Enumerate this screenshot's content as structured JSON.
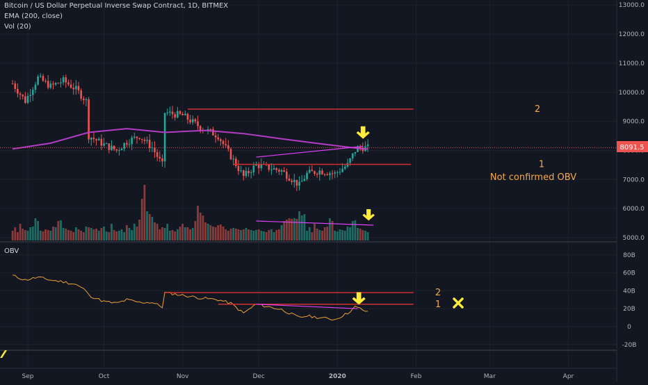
{
  "header": {
    "title": "Bitcoin / US Dollar Perpetual Inverse Swap Contract, 1D, BITMEX",
    "indicator_ema": "EMA (200, close)",
    "indicator_vol": "Vol (20)"
  },
  "obv_pane": {
    "label": "OBV"
  },
  "price_badge": "8091.5",
  "colors": {
    "background": "#131722",
    "up": "#26a69a",
    "down": "#ef5350",
    "ema": "#b33cc4",
    "level": "#d32f2f",
    "trend": "#e040fb",
    "obv": "#f0a030",
    "arrow": "#ffeb3b",
    "annotation": "#f7a94a"
  },
  "chart_data": [
    {
      "type": "candlestick",
      "title": "Bitcoin / US Dollar Perpetual Inverse Swap Contract, 1D, BITMEX",
      "x_tick_labels": [
        "Sep",
        "Oct",
        "Nov",
        "Dec",
        "2020",
        "Feb",
        "Mar",
        "Apr"
      ],
      "y_tick_labels": [
        "5000.0",
        "6000.0",
        "7000.0",
        "8000.0",
        "9000.0",
        "10000.0",
        "11000.0",
        "12000.0",
        "13000.0"
      ],
      "ylim": [
        4900,
        13100
      ],
      "last_price": 8091.5,
      "series": [
        {
          "name": "EMA (200, close)",
          "points": [
            [
              "Aug 26",
              8050
            ],
            [
              "Sep 10",
              8250
            ],
            [
              "Sep 25",
              8620
            ],
            [
              "Oct 10",
              8750
            ],
            [
              "Oct 25",
              8620
            ],
            [
              "Nov 10",
              8690
            ],
            [
              "Nov 25",
              8580
            ],
            [
              "Dec 10",
              8400
            ],
            [
              "Dec 25",
              8230
            ],
            [
              "Jan 10",
              8060
            ],
            [
              "Jan 13",
              8050
            ]
          ]
        },
        {
          "name": "Price",
          "points": [
            [
              "Aug 26",
              10300
            ],
            [
              "Aug 31",
              9700
            ],
            [
              "Sep 5",
              10500
            ],
            [
              "Sep 10",
              10200
            ],
            [
              "Sep 15",
              10400
            ],
            [
              "Sep 20",
              10100
            ],
            [
              "Sep 24",
              9700
            ],
            [
              "Sep 25",
              8500
            ],
            [
              "Oct 1",
              8200
            ],
            [
              "Oct 6",
              8000
            ],
            [
              "Oct 10",
              8300
            ],
            [
              "Oct 15",
              8500
            ],
            [
              "Oct 20",
              8100
            ],
            [
              "Oct 24",
              7500
            ],
            [
              "Oct 25",
              9300
            ],
            [
              "Nov 1",
              9200
            ],
            [
              "Nov 8",
              8800
            ],
            [
              "Nov 15",
              8500
            ],
            [
              "Nov 20",
              7800
            ],
            [
              "Nov 25",
              7100
            ],
            [
              "Nov 30",
              7500
            ],
            [
              "Dec 5",
              7400
            ],
            [
              "Dec 10",
              7300
            ],
            [
              "Dec 17",
              6800
            ],
            [
              "Dec 20",
              7200
            ],
            [
              "Dec 25",
              7300
            ],
            [
              "Dec 31",
              7200
            ],
            [
              "Jan 5",
              7500
            ],
            [
              "Jan 8",
              8000
            ],
            [
              "Jan 10",
              8100
            ],
            [
              "Jan 13",
              8091.5
            ]
          ]
        }
      ],
      "annotations": {
        "level_2": {
          "label": "2",
          "value": 9420,
          "from": "Nov 3",
          "to": "Jan 31"
        },
        "level_1": {
          "label": "1",
          "value": 7520,
          "from": "Nov 21",
          "to": "Jan 30"
        },
        "level_1_note": "Not confirmed OBV",
        "trendline": {
          "from": [
            "Nov 30",
            7770
          ],
          "to": [
            "Jan 11",
            8140
          ]
        },
        "arrow_at": [
          "Jan 10",
          8400
        ]
      }
    },
    {
      "type": "bar",
      "title": "Vol (20)",
      "values": [
        70,
        95,
        60,
        120,
        85,
        75,
        70,
        95,
        100,
        160,
        140,
        70,
        65,
        80,
        75,
        70,
        100,
        95,
        140,
        145,
        90,
        85,
        75,
        70,
        60,
        95,
        80,
        70,
        60,
        100,
        95,
        90,
        80,
        85,
        70,
        90,
        100,
        65,
        60,
        120,
        75,
        65,
        70,
        80,
        60,
        110,
        90,
        75,
        120,
        100,
        150,
        300,
        400,
        210,
        190,
        170,
        130,
        120,
        80,
        95,
        90,
        120,
        70,
        75,
        65,
        80,
        100,
        120,
        95,
        95,
        80,
        90,
        140,
        250,
        200,
        180,
        130,
        120,
        110,
        100,
        95,
        110,
        115,
        100,
        80,
        70,
        85,
        90,
        85,
        80,
        75,
        80,
        90,
        80,
        75,
        70,
        75,
        80,
        70,
        65,
        60,
        75,
        80,
        60,
        75,
        80,
        110,
        140,
        150,
        160,
        155,
        160,
        155,
        210,
        180,
        190
      ],
      "trendline": {
        "from": "Nov 30",
        "to": "Jan 13",
        "description": "falling volume"
      }
    },
    {
      "type": "line",
      "title": "OBV",
      "y_tick_labels": [
        "80B",
        "60B",
        "40B",
        "20B",
        "0",
        "-20B"
      ],
      "ylim": [
        -26,
        96
      ],
      "series": [
        {
          "name": "OBV",
          "points": [
            [
              "Aug 26",
              57
            ],
            [
              "Aug 31",
              52
            ],
            [
              "Sep 5",
              55
            ],
            [
              "Sep 10",
              52
            ],
            [
              "Sep 15",
              50
            ],
            [
              "Sep 20",
              47
            ],
            [
              "Sep 24",
              40
            ],
            [
              "Sep 25",
              35
            ],
            [
              "Oct 1",
              28
            ],
            [
              "Oct 6",
              26
            ],
            [
              "Oct 10",
              30
            ],
            [
              "Oct 15",
              27
            ],
            [
              "Oct 20",
              27
            ],
            [
              "Oct 24",
              22
            ],
            [
              "Oct 25",
              38
            ],
            [
              "Nov 1",
              35
            ],
            [
              "Nov 8",
              32
            ],
            [
              "Nov 15",
              30
            ],
            [
              "Nov 20",
              26
            ],
            [
              "Nov 25",
              15
            ],
            [
              "Nov 30",
              25
            ],
            [
              "Dec 5",
              22
            ],
            [
              "Dec 10",
              19
            ],
            [
              "Dec 17",
              10
            ],
            [
              "Dec 20",
              12
            ],
            [
              "Dec 25",
              10
            ],
            [
              "Dec 31",
              8
            ],
            [
              "Jan 5",
              15
            ],
            [
              "Jan 8",
              22
            ],
            [
              "Jan 10",
              20
            ],
            [
              "Jan 13",
              16
            ]
          ]
        }
      ],
      "annotations": {
        "level_2": {
          "label": "2",
          "value": 38,
          "from": "Oct 25",
          "to": "Jan 31"
        },
        "level_1": {
          "label": "1",
          "value": 25,
          "from": "Nov 15",
          "to": "Jan 31"
        },
        "trendline": {
          "from": [
            "Nov 30",
            25
          ],
          "to": [
            "Jan 9",
            20
          ]
        },
        "arrow_at": [
          "Jan 10",
          26
        ],
        "x_mark_at": [
          "Feb 15",
          26
        ]
      }
    }
  ]
}
